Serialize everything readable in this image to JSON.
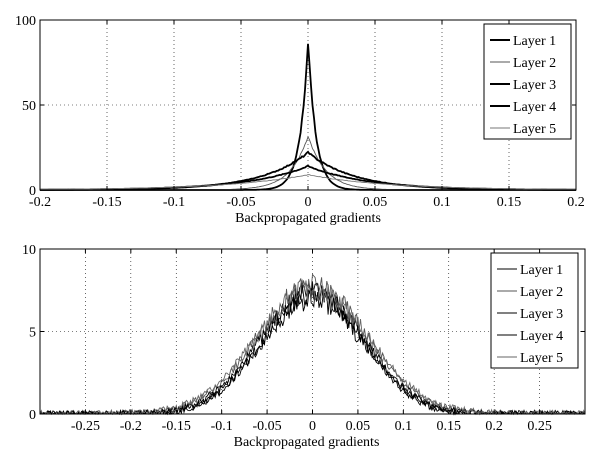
{
  "chart_data": [
    {
      "type": "line",
      "xlabel": "Backpropagated gradients",
      "ylabel": "",
      "xlim": [
        -0.2,
        0.2
      ],
      "ylim": [
        0,
        100
      ],
      "xticks": [
        -0.2,
        -0.15,
        -0.1,
        -0.05,
        0,
        0.05,
        0.1,
        0.15,
        0.2
      ],
      "xtick_labels": [
        "-0.2",
        "-0.15",
        "-0.1",
        "-0.05",
        "0",
        "0.05",
        "0.1",
        "0.15",
        "0.2"
      ],
      "yticks": [
        0,
        50,
        100
      ],
      "ytick_labels": [
        "0",
        "50",
        "100"
      ],
      "grid": true,
      "legend_position": "top-right",
      "series": [
        {
          "name": "Layer 1",
          "color": "#000000",
          "shape": "laplace",
          "peak": 87,
          "width": 0.006
        },
        {
          "name": "Layer 2",
          "color": "#555555",
          "shape": "laplace",
          "peak": 32,
          "width": 0.013
        },
        {
          "name": "Layer 3",
          "color": "#000000",
          "shape": "laplace",
          "peak": 22,
          "width": 0.035
        },
        {
          "name": "Layer 4",
          "color": "#000000",
          "shape": "laplace",
          "peak": 14,
          "width": 0.045
        },
        {
          "name": "Layer 5",
          "color": "#777777",
          "shape": "laplace",
          "peak": 9,
          "width": 0.06
        }
      ]
    },
    {
      "type": "line",
      "xlabel": "Backpropagated gradients",
      "ylabel": "",
      "xlim": [
        -0.3,
        0.3
      ],
      "ylim": [
        0,
        10
      ],
      "xticks": [
        -0.25,
        -0.2,
        -0.15,
        -0.1,
        -0.05,
        0,
        0.05,
        0.1,
        0.15,
        0.2,
        0.25
      ],
      "xtick_labels": [
        "-0.25",
        "-0.2",
        "-0.15",
        "-0.1",
        "-0.05",
        "0",
        "0.05",
        "0.1",
        "0.15",
        "0.2",
        "0.25"
      ],
      "yticks": [
        0,
        5,
        10
      ],
      "ytick_labels": [
        "0",
        "5",
        "10"
      ],
      "grid": true,
      "legend_position": "top-right",
      "series": [
        {
          "name": "Layer 1",
          "color": "#000000",
          "shape": "gauss",
          "peak": 7.5,
          "sigma": 0.055
        },
        {
          "name": "Layer 2",
          "color": "#555555",
          "shape": "gauss",
          "peak": 7.8,
          "sigma": 0.06
        },
        {
          "name": "Layer 3",
          "color": "#000000",
          "shape": "gauss",
          "peak": 7.0,
          "sigma": 0.057
        },
        {
          "name": "Layer 4",
          "color": "#000000",
          "shape": "gauss",
          "peak": 7.3,
          "sigma": 0.058
        },
        {
          "name": "Layer 5",
          "color": "#666666",
          "shape": "gauss",
          "peak": 7.6,
          "sigma": 0.062
        }
      ]
    }
  ]
}
